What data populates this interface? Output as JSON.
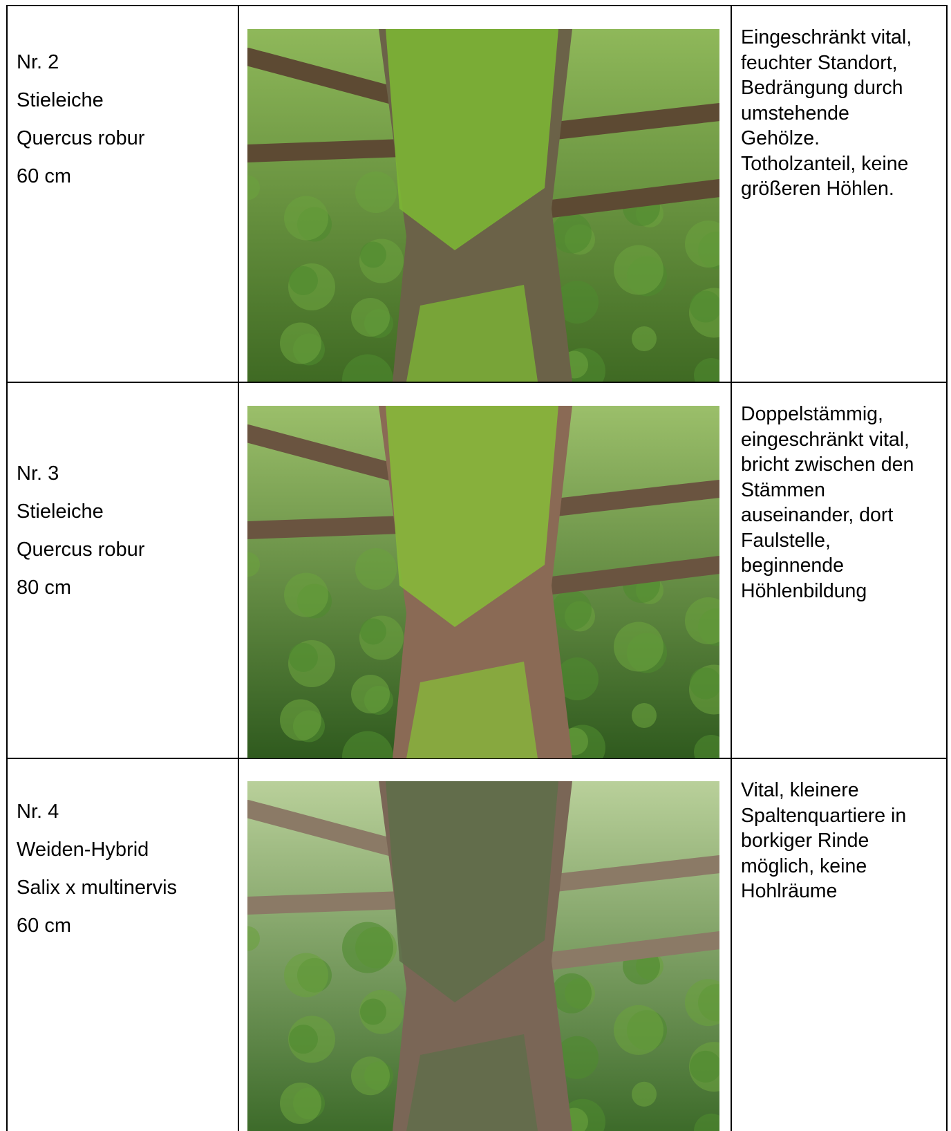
{
  "table": {
    "rows": [
      {
        "number": "Nr. 2",
        "common_name": "Stieleiche",
        "latin_name": "Quercus robur",
        "diameter": "60 cm",
        "description": [
          "Eingeschränkt vital,",
          "feuchter Standort,",
          "Bedrängung durch",
          "umstehende",
          "Gehölze.",
          "Totholzanteil, keine",
          "größeren Höhlen."
        ]
      },
      {
        "number": "Nr. 3",
        "common_name": "Stieleiche",
        "latin_name": "Quercus robur",
        "diameter": "80 cm",
        "description": [
          "Doppelstämmig,",
          "eingeschränkt vital,",
          "bricht zwischen den",
          "Stämmen",
          "auseinander, dort",
          "Faulstelle,",
          "beginnende",
          "Höhlenbildung"
        ]
      },
      {
        "number": "Nr. 4",
        "common_name": "Weiden-Hybrid",
        "latin_name": "Salix x multinervis",
        "diameter": "60 cm",
        "description": [
          "Vital, kleinere",
          "Spaltenquartiere in",
          "borkiger Rinde",
          "möglich, keine",
          "Hohlräume"
        ]
      }
    ]
  }
}
